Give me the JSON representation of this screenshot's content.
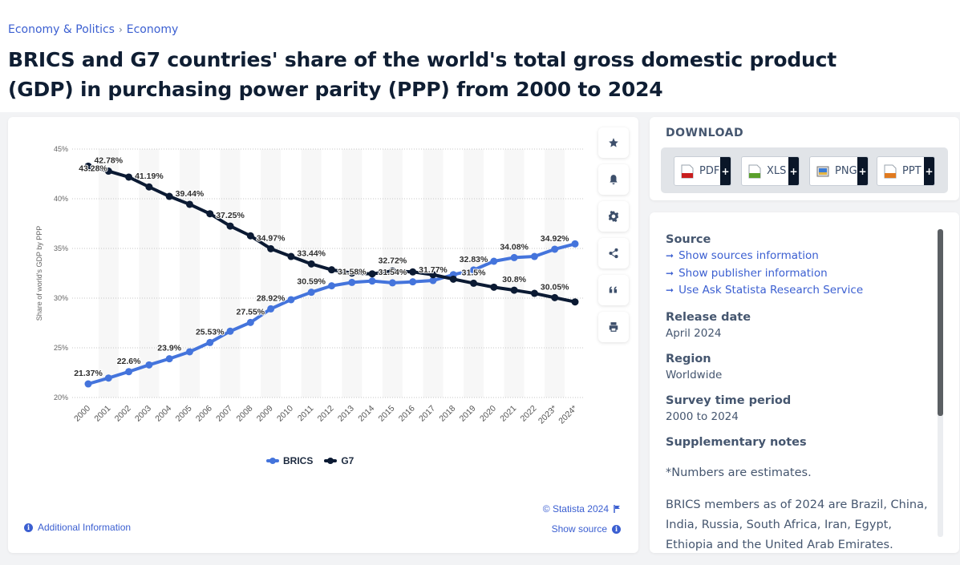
{
  "breadcrumb": [
    "Economy & Politics",
    "Economy"
  ],
  "breadcrumb_separator": "›",
  "title": "BRICS and G7 countries' share of the world's total gross domestic product (GDP) in purchasing power parity (PPP) from 2000 to 2024",
  "toolbar": [
    {
      "name": "favorite",
      "icon": "star-icon"
    },
    {
      "name": "notification",
      "icon": "bell-icon"
    },
    {
      "name": "settings",
      "icon": "gear-icon"
    },
    {
      "name": "share",
      "icon": "share-icon"
    },
    {
      "name": "cite",
      "icon": "quote-icon"
    },
    {
      "name": "print",
      "icon": "print-icon"
    }
  ],
  "chart_data": {
    "type": "line",
    "title": "",
    "xlabel": "",
    "ylabel": "Share of world's GDP by PPP",
    "ylim": [
      20,
      45
    ],
    "yticks": [
      20,
      25,
      30,
      35,
      40,
      45
    ],
    "ytick_labels": [
      "20%",
      "25%",
      "30%",
      "35%",
      "40%",
      "45%"
    ],
    "grid": true,
    "legend_position": "bottom-center",
    "x": [
      "2000",
      "2001",
      "2002",
      "2003",
      "2004",
      "2005",
      "2006",
      "2007",
      "2008",
      "2009",
      "2010",
      "2011",
      "2012",
      "2013",
      "2014",
      "2015",
      "2016",
      "2017",
      "2018",
      "2019",
      "2020",
      "2021",
      "2022",
      "2023*",
      "2024*"
    ],
    "series": [
      {
        "name": "BRICS",
        "color": "#4474dc",
        "values": [
          21.37,
          21.96,
          22.6,
          23.28,
          23.9,
          24.6,
          25.53,
          26.67,
          27.55,
          28.92,
          29.84,
          30.59,
          31.24,
          31.58,
          31.72,
          31.54,
          31.64,
          31.77,
          32.36,
          32.83,
          33.71,
          34.08,
          34.19,
          34.92,
          35.46
        ],
        "labels": [
          "21.37%",
          null,
          "22.6%",
          null,
          "23.9%",
          null,
          "25.53%",
          null,
          "27.55%",
          "28.92%",
          null,
          "30.59%",
          null,
          "31.58%",
          null,
          "31.54%",
          null,
          "31.77%",
          null,
          "32.83%",
          null,
          "34.08%",
          null,
          "34.92%",
          null
        ]
      },
      {
        "name": "G7",
        "color": "#0b1a33",
        "values": [
          43.28,
          42.78,
          42.18,
          41.19,
          40.24,
          39.44,
          38.49,
          37.25,
          36.27,
          34.97,
          34.19,
          33.44,
          32.85,
          32.52,
          32.44,
          32.72,
          32.64,
          32.36,
          31.91,
          31.5,
          31.1,
          30.8,
          30.48,
          30.05,
          29.62
        ],
        "labels": [
          "43.28%",
          "42.78%",
          null,
          "41.19%",
          null,
          "39.44%",
          null,
          "37.25%",
          null,
          "34.97%",
          null,
          "33.44%",
          null,
          null,
          null,
          "32.72%",
          null,
          null,
          null,
          "31.5%",
          null,
          "30.8%",
          null,
          "30.05%",
          null
        ]
      }
    ]
  },
  "legend": [
    {
      "name": "BRICS",
      "color": "#4474dc"
    },
    {
      "name": "G7",
      "color": "#0b1a33"
    }
  ],
  "footer": {
    "copyright": "© Statista 2024",
    "additional_info": "Additional Information",
    "show_source": "Show source"
  },
  "download": {
    "title": "DOWNLOAD",
    "buttons": [
      {
        "label": "PDF",
        "icon": "pdf-file-icon",
        "color": "#c81e1e"
      },
      {
        "label": "XLS",
        "icon": "xls-file-icon",
        "color": "#5aa02c"
      },
      {
        "label": "PNG",
        "icon": "png-image-icon",
        "color": "#3a7bd5"
      },
      {
        "label": "PPT",
        "icon": "ppt-file-icon",
        "color": "#e07a1f"
      }
    ],
    "plus": "+"
  },
  "info": {
    "source_heading": "Source",
    "source_links": [
      "Show sources information",
      "Show publisher information",
      "Use Ask Statista Research Service"
    ],
    "release_heading": "Release date",
    "release_value": "April 2024",
    "region_heading": "Region",
    "region_value": "Worldwide",
    "period_heading": "Survey time period",
    "period_value": "2000 to 2024",
    "notes_heading": "Supplementary notes",
    "notes": [
      "*Numbers are estimates.",
      "BRICS members as of 2024 are Brazil, China, India, Russia, South Africa, Iran, Egypt, Ethiopia and the United Arab Emirates."
    ]
  }
}
